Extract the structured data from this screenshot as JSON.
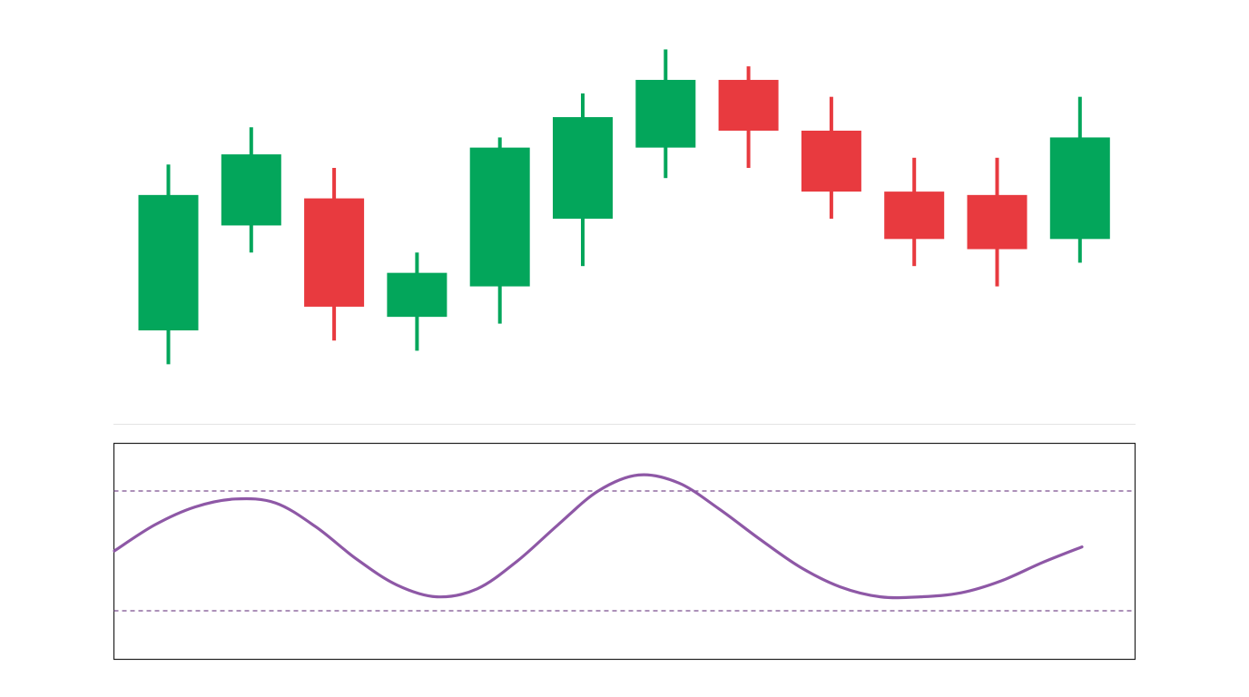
{
  "chart_data": [
    {
      "type": "candlestick",
      "title": "",
      "xlabel": "",
      "ylabel": "",
      "ylim": [
        0,
        100
      ],
      "grid": false,
      "up_color": "#03a65b",
      "down_color": "#e83a3f",
      "candles": [
        {
          "open": 15,
          "high": 64,
          "low": 5,
          "close": 55
        },
        {
          "open": 46,
          "high": 75,
          "low": 38,
          "close": 67
        },
        {
          "open": 54,
          "high": 63,
          "low": 12,
          "close": 22
        },
        {
          "open": 19,
          "high": 38,
          "low": 9,
          "close": 32
        },
        {
          "open": 28,
          "high": 72,
          "low": 17,
          "close": 69
        },
        {
          "open": 48,
          "high": 85,
          "low": 34,
          "close": 78
        },
        {
          "open": 69,
          "high": 98,
          "low": 60,
          "close": 89
        },
        {
          "open": 89,
          "high": 93,
          "low": 63,
          "close": 74
        },
        {
          "open": 74,
          "high": 84,
          "low": 48,
          "close": 56
        },
        {
          "open": 56,
          "high": 66,
          "low": 34,
          "close": 42
        },
        {
          "open": 55,
          "high": 66,
          "low": 28,
          "close": 39
        },
        {
          "open": 42,
          "high": 84,
          "low": 35,
          "close": 72
        }
      ]
    },
    {
      "type": "line",
      "title": "",
      "xlabel": "",
      "ylabel": "",
      "ylim": [
        0,
        100
      ],
      "grid": false,
      "reference_lines": [
        80,
        20
      ],
      "series": [
        {
          "color": "#8e58a6",
          "x": [
            0,
            0.5,
            1,
            1.5,
            2,
            2.5,
            3,
            3.5,
            4,
            4.5,
            5,
            5.5,
            6,
            6.5,
            7,
            7.5,
            8,
            8.5,
            9,
            9.5,
            10,
            10.5,
            11,
            11.5,
            12
          ],
          "y": [
            50,
            63,
            72,
            76,
            74,
            62,
            46,
            33,
            27,
            31,
            45,
            63,
            80,
            88,
            84,
            71,
            56,
            42,
            32,
            27,
            27,
            29,
            35,
            44,
            52
          ]
        }
      ]
    }
  ]
}
